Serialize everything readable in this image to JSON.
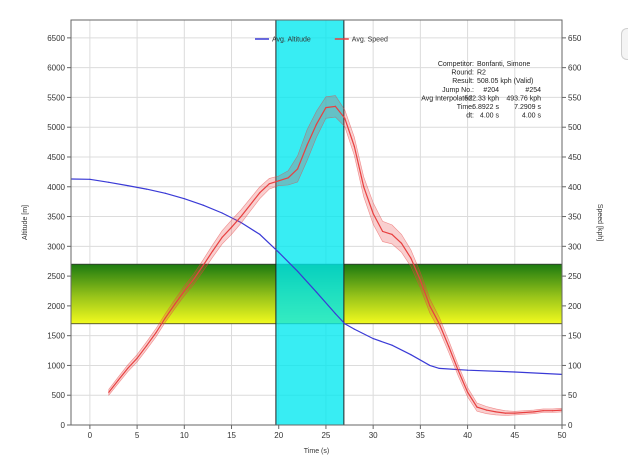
{
  "chart_data": {
    "type": "line",
    "x_axis": {
      "label": "Time (s)",
      "range": [
        -2,
        50
      ],
      "ticks": [
        0,
        5,
        10,
        15,
        20,
        25,
        30,
        35,
        40,
        45,
        50
      ]
    },
    "y_axis_left": {
      "label": "Altitude [m]",
      "range": [
        0,
        6800
      ],
      "ticks": [
        0,
        500,
        1000,
        1500,
        2000,
        2500,
        3000,
        3500,
        4000,
        4500,
        5000,
        5500,
        6000,
        6500
      ]
    },
    "y_axis_right": {
      "label": "Speed [kph]",
      "range": [
        0,
        680
      ],
      "ticks": [
        0,
        50,
        100,
        150,
        200,
        250,
        300,
        350,
        400,
        450,
        500,
        550,
        600,
        650
      ]
    },
    "grid": true,
    "legend": {
      "placement": "top-center",
      "entries": [
        {
          "name": "Avg. Altitude",
          "color": "#3a3ad6"
        },
        {
          "name": "Avg. Speed",
          "color": "#e84040"
        }
      ]
    },
    "series": [
      {
        "name": "Avg. Altitude",
        "axis": "left",
        "color": "#3a3ad6",
        "points": [
          [
            -2,
            4130
          ],
          [
            0,
            4125
          ],
          [
            2,
            4075
          ],
          [
            4,
            4020
          ],
          [
            6,
            3960
          ],
          [
            8,
            3890
          ],
          [
            10,
            3800
          ],
          [
            12,
            3690
          ],
          [
            14,
            3560
          ],
          [
            16,
            3400
          ],
          [
            18,
            3200
          ],
          [
            20,
            2900
          ],
          [
            22,
            2580
          ],
          [
            24,
            2230
          ],
          [
            26,
            1870
          ],
          [
            27,
            1700
          ],
          [
            28,
            1610
          ],
          [
            30,
            1450
          ],
          [
            32,
            1340
          ],
          [
            34,
            1180
          ],
          [
            36,
            1000
          ],
          [
            37,
            950
          ],
          [
            40,
            920
          ],
          [
            45,
            890
          ],
          [
            50,
            850
          ]
        ]
      },
      {
        "name": "Avg. Speed",
        "axis": "right",
        "color": "#e84040",
        "points": [
          [
            2,
            55
          ],
          [
            3,
            75
          ],
          [
            4,
            95
          ],
          [
            5,
            112
          ],
          [
            6,
            133
          ],
          [
            7,
            155
          ],
          [
            8,
            180
          ],
          [
            9,
            203
          ],
          [
            10,
            225
          ],
          [
            11,
            245
          ],
          [
            12,
            268
          ],
          [
            13,
            292
          ],
          [
            14,
            315
          ],
          [
            15,
            332
          ],
          [
            16,
            350
          ],
          [
            17,
            370
          ],
          [
            18,
            390
          ],
          [
            19,
            405
          ],
          [
            20,
            410
          ],
          [
            21,
            415
          ],
          [
            22,
            430
          ],
          [
            23,
            470
          ],
          [
            24,
            505
          ],
          [
            25,
            533
          ],
          [
            26,
            535
          ],
          [
            27,
            515
          ],
          [
            28,
            468
          ],
          [
            29,
            400
          ],
          [
            30,
            355
          ],
          [
            31,
            325
          ],
          [
            32,
            320
          ],
          [
            33,
            305
          ],
          [
            34,
            280
          ],
          [
            35,
            243
          ],
          [
            36,
            200
          ],
          [
            37,
            170
          ],
          [
            38,
            132
          ],
          [
            39,
            92
          ],
          [
            40,
            55
          ],
          [
            41,
            30
          ],
          [
            42,
            25
          ],
          [
            43,
            22
          ],
          [
            44,
            20
          ],
          [
            45,
            20
          ],
          [
            46,
            21
          ],
          [
            47,
            22
          ],
          [
            48,
            24
          ],
          [
            49,
            24
          ],
          [
            50,
            25
          ]
        ],
        "band": [
          [
            2,
            5
          ],
          [
            10,
            8
          ],
          [
            15,
            12
          ],
          [
            18,
            10
          ],
          [
            20,
            8
          ],
          [
            21,
            12
          ],
          [
            22,
            22
          ],
          [
            23,
            26
          ],
          [
            24,
            22
          ],
          [
            25,
            18
          ],
          [
            26,
            18
          ],
          [
            27,
            14
          ],
          [
            30,
            18
          ],
          [
            33,
            15
          ],
          [
            36,
            12
          ],
          [
            40,
            8
          ],
          [
            45,
            3
          ],
          [
            50,
            3
          ]
        ]
      }
    ],
    "speed_band": {
      "from": 170,
      "to": 270,
      "colors": [
        "#1c7a10",
        "#9ac51a",
        "#f2fa1e"
      ]
    },
    "time_window": {
      "from": 19.7,
      "to": 26.9,
      "color": "#00e8f0"
    },
    "info_box": [
      {
        "label": "Competitor:",
        "values": [
          "Bonfanti, Simone"
        ]
      },
      {
        "label": "Round:",
        "values": [
          "R2"
        ]
      },
      {
        "label": "Result:",
        "values": [
          "508.05 kph (Valid)"
        ]
      },
      {
        "label": "Jump No.:",
        "values": [
          "#204",
          "#254"
        ]
      },
      {
        "label": "Avg Interpolated:",
        "values": [
          "522.33 kph",
          "493.76 kph"
        ]
      },
      {
        "label": "Time:",
        "values": [
          "6.8922 s",
          "7.2909 s"
        ]
      },
      {
        "label": "dt:",
        "values": [
          "4.00 s",
          "4.00 s"
        ]
      }
    ]
  }
}
